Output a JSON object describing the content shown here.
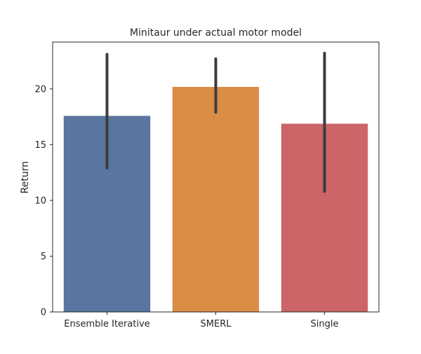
{
  "chart_data": {
    "type": "bar",
    "title": "Minitaur under actual motor model",
    "xlabel": "",
    "ylabel": "Return",
    "categories": [
      "Ensemble Iterative",
      "SMERL",
      "Single"
    ],
    "values": [
      17.6,
      20.2,
      16.9
    ],
    "error_low": [
      12.9,
      17.9,
      10.8
    ],
    "error_high": [
      23.1,
      22.7,
      23.2
    ],
    "colors": [
      "#5975a0",
      "#d98d45",
      "#cc6567"
    ],
    "errorbar_color": "#3c3c3c",
    "ylim": [
      0,
      24.2
    ],
    "yticks": [
      0,
      5,
      10,
      15,
      20
    ],
    "grid": false,
    "legend": "none"
  }
}
